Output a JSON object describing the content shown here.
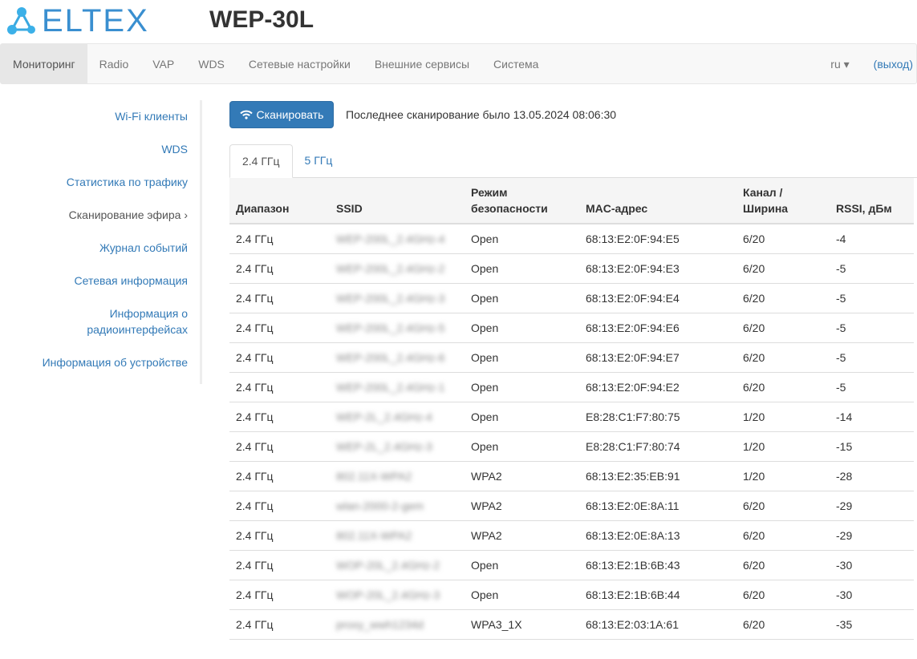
{
  "header": {
    "logo": "ELTEX",
    "device": "WEP-30L"
  },
  "nav": {
    "items": [
      "Мониторинг",
      "Radio",
      "VAP",
      "WDS",
      "Сетевые настройки",
      "Внешние сервисы",
      "Система"
    ],
    "lang": "ru",
    "logout": "(выход)"
  },
  "sidebar": {
    "items": [
      "Wi-Fi клиенты",
      "WDS",
      "Статистика по трафику",
      "Сканирование эфира ›",
      "Журнал событий",
      "Сетевая информация",
      "Информация о радиоинтерфейсах",
      "Информация об устройстве"
    ]
  },
  "scan": {
    "button": "Сканировать",
    "last": "Последнее сканирование было 13.05.2024 08:06:30"
  },
  "tabs": [
    "2.4 ГГц",
    "5 ГГц"
  ],
  "table": {
    "headers": [
      "Диапазон",
      "SSID",
      "Режим безопасности",
      "MAC-адрес",
      "Канал / Ширина",
      "RSSI, дБм"
    ],
    "rows": [
      [
        "2.4 ГГц",
        "WEP-200L_2.4GHz-4",
        "Open",
        "68:13:E2:0F:94:E5",
        "6/20",
        "-4"
      ],
      [
        "2.4 ГГц",
        "WEP-200L_2.4GHz-2",
        "Open",
        "68:13:E2:0F:94:E3",
        "6/20",
        "-5"
      ],
      [
        "2.4 ГГц",
        "WEP-200L_2.4GHz-3",
        "Open",
        "68:13:E2:0F:94:E4",
        "6/20",
        "-5"
      ],
      [
        "2.4 ГГц",
        "WEP-200L_2.4GHz-5",
        "Open",
        "68:13:E2:0F:94:E6",
        "6/20",
        "-5"
      ],
      [
        "2.4 ГГц",
        "WEP-200L_2.4GHz-6",
        "Open",
        "68:13:E2:0F:94:E7",
        "6/20",
        "-5"
      ],
      [
        "2.4 ГГц",
        "WEP-200L_2.4GHz-1",
        "Open",
        "68:13:E2:0F:94:E2",
        "6/20",
        "-5"
      ],
      [
        "2.4 ГГц",
        "WEP-2L_2.4GHz-4",
        "Open",
        "E8:28:C1:F7:80:75",
        "1/20",
        "-14"
      ],
      [
        "2.4 ГГц",
        "WEP-2L_2.4GHz-3",
        "Open",
        "E8:28:C1:F7:80:74",
        "1/20",
        "-15"
      ],
      [
        "2.4 ГГц",
        "802.11X-WPA2",
        "WPA2",
        "68:13:E2:35:EB:91",
        "1/20",
        "-28"
      ],
      [
        "2.4 ГГц",
        "wlan-2000-2-gem",
        "WPA2",
        "68:13:E2:0E:8A:11",
        "6/20",
        "-29"
      ],
      [
        "2.4 ГГц",
        "802.11X-WPA2",
        "WPA2",
        "68:13:E2:0E:8A:13",
        "6/20",
        "-29"
      ],
      [
        "2.4 ГГц",
        "WOP-20L_2.4GHz-2",
        "Open",
        "68:13:E2:1B:6B:43",
        "6/20",
        "-30"
      ],
      [
        "2.4 ГГц",
        "WOP-20L_2.4GHz-3",
        "Open",
        "68:13:E2:1B:6B:44",
        "6/20",
        "-30"
      ],
      [
        "2.4 ГГц",
        "proxy_wwh1234d",
        "WPA3_1X",
        "68:13:E2:03:1A:61",
        "6/20",
        "-35"
      ]
    ]
  }
}
